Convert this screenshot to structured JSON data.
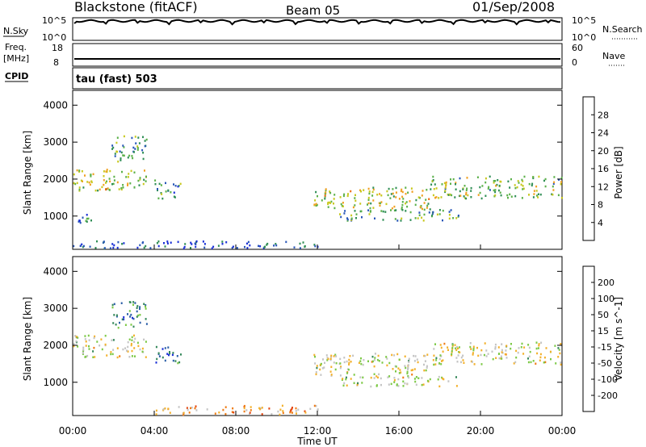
{
  "header": {
    "title": "Blackstone (fitACF)",
    "beam": "Beam 05",
    "date": "01/Sep/2008"
  },
  "sky_panel": {
    "left_label": "N.Sky",
    "right_label": "N.Search",
    "left_ticks": [
      "10^5",
      "10^0"
    ],
    "right_ticks": [
      "10^5",
      "10^0"
    ]
  },
  "freq_panel": {
    "left_label_1": "Freq.",
    "left_label_2": "[MHz]",
    "right_label": "Nave",
    "left_ticks": [
      "18",
      "8"
    ],
    "right_ticks": [
      "60",
      "0"
    ]
  },
  "cpid_panel": {
    "label": "CPID",
    "text": "tau (fast) 503"
  },
  "colors": {
    "power_scale": [
      "#1a2fd6",
      "#2856b8",
      "#2f8e55",
      "#5cb14a",
      "#c8c81e",
      "#f0a020",
      "#ef6a10",
      "#e01010"
    ],
    "velocity_scale": [
      "#1a2fd6",
      "#2c5fa8",
      "#35885a",
      "#7cc945",
      "#c4c4c4",
      "#f3b02a",
      "#ef7a12",
      "#e44810",
      "#e01010"
    ]
  },
  "chart_data": [
    {
      "type": "heatmap",
      "name": "power",
      "xlabel": "",
      "ylabel": "Slant Range [km]",
      "xlim": [
        0,
        24
      ],
      "ylim": [
        100,
        4400
      ],
      "y_ticks": [
        "4000",
        "3000",
        "2000",
        "1000"
      ],
      "colorbar_label": "Power [dB]",
      "colorbar_ticks": [
        "28",
        "24",
        "20",
        "16",
        "12",
        "8",
        "4"
      ],
      "colorbar_range": [
        0,
        32
      ],
      "echo_regions": [
        {
          "t_start": 0.0,
          "t_end": 3.6,
          "r_low": 1700,
          "r_high": 2300,
          "level": 0.55
        },
        {
          "t_start": 1.9,
          "t_end": 3.6,
          "r_low": 2500,
          "r_high": 3200,
          "level": 0.35
        },
        {
          "t_start": 0.2,
          "t_end": 1.2,
          "r_low": 800,
          "r_high": 1100,
          "level": 0.2
        },
        {
          "t_start": 4.0,
          "t_end": 5.3,
          "r_low": 1500,
          "r_high": 2000,
          "level": 0.3
        },
        {
          "t_start": 11.8,
          "t_end": 17.5,
          "r_low": 1200,
          "r_high": 1800,
          "level": 0.55
        },
        {
          "t_start": 13.0,
          "t_end": 19.0,
          "r_low": 900,
          "r_high": 1200,
          "level": 0.35
        },
        {
          "t_start": 17.5,
          "t_end": 24.0,
          "r_low": 1500,
          "r_high": 2100,
          "level": 0.45
        },
        {
          "t_start": 0.0,
          "t_end": 12.0,
          "r_low": 150,
          "r_high": 350,
          "level": 0.1
        }
      ]
    },
    {
      "type": "heatmap",
      "name": "velocity",
      "xlabel": "Time UT",
      "ylabel": "Slant Range [km]",
      "xlim": [
        0,
        24
      ],
      "ylim": [
        100,
        4400
      ],
      "x_ticks": [
        "00:00",
        "04:00",
        "08:00",
        "12:00",
        "16:00",
        "20:00",
        "00:00"
      ],
      "y_ticks": [
        "4000",
        "3000",
        "2000",
        "1000"
      ],
      "colorbar_label": "Velocity [m s^-1]",
      "colorbar_ticks": [
        "200",
        "100",
        "50",
        "15",
        "-15",
        "-50",
        "-100",
        "-200"
      ],
      "echo_regions": [
        {
          "t_start": 0.0,
          "t_end": 3.6,
          "r_low": 1700,
          "r_high": 2300,
          "level": 0.0
        },
        {
          "t_start": 1.9,
          "t_end": 3.6,
          "r_low": 2500,
          "r_high": 3200,
          "level": 0.6
        },
        {
          "t_start": 4.0,
          "t_end": 5.3,
          "r_low": 1500,
          "r_high": 2000,
          "level": 0.6
        },
        {
          "t_start": 11.8,
          "t_end": 17.5,
          "r_low": 1200,
          "r_high": 1800,
          "level": 0.0
        },
        {
          "t_start": 13.0,
          "t_end": 19.0,
          "r_low": 900,
          "r_high": 1200,
          "level": 0.0
        },
        {
          "t_start": 17.5,
          "t_end": 24.0,
          "r_low": 1500,
          "r_high": 2100,
          "level": 0.0
        },
        {
          "t_start": 4.0,
          "t_end": 12.0,
          "r_low": 150,
          "r_high": 400,
          "level": -0.4
        }
      ]
    }
  ]
}
